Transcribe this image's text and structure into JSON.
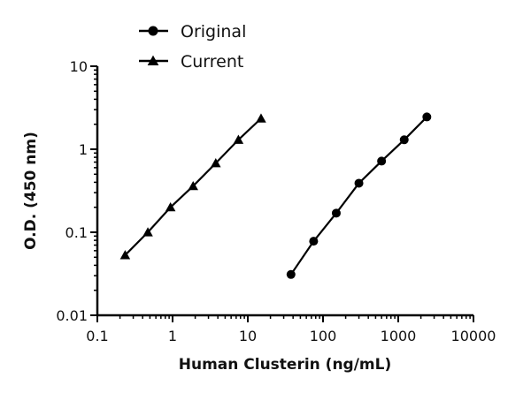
{
  "chart_data": {
    "type": "line",
    "title": "",
    "xlabel": "Human Clusterin (ng/mL)",
    "ylabel": "O.D. (450 nm)",
    "xscale": "log",
    "yscale": "log",
    "xlim": [
      0.1,
      10000
    ],
    "ylim": [
      0.01,
      10
    ],
    "x_ticks": [
      0.1,
      1,
      10,
      100,
      1000,
      10000
    ],
    "x_tick_labels": [
      "0.1",
      "1",
      "10",
      "100",
      "1000",
      "10000"
    ],
    "y_ticks": [
      0.01,
      0.1,
      1,
      10
    ],
    "y_tick_labels": [
      "0.01",
      "0.1",
      "1",
      "10"
    ],
    "grid": false,
    "legend_position": "top-left, above plot",
    "series": [
      {
        "name": "Original",
        "marker": "circle",
        "color": "#000000",
        "x": [
          37.5,
          75,
          150,
          300,
          600,
          1200,
          2400
        ],
        "y": [
          0.031,
          0.078,
          0.17,
          0.39,
          0.72,
          1.3,
          2.45
        ]
      },
      {
        "name": "Current",
        "marker": "triangle",
        "color": "#000000",
        "x": [
          0.234,
          0.469,
          0.938,
          1.875,
          3.75,
          7.5,
          15
        ],
        "y": [
          0.053,
          0.1,
          0.2,
          0.36,
          0.68,
          1.3,
          2.35
        ]
      }
    ]
  },
  "legend": {
    "items": [
      {
        "label": "Original",
        "marker": "circle"
      },
      {
        "label": "Current",
        "marker": "triangle"
      }
    ]
  },
  "axes": {
    "x_title": "Human Clusterin (ng/mL)",
    "y_title": "O.D. (450 nm)"
  }
}
